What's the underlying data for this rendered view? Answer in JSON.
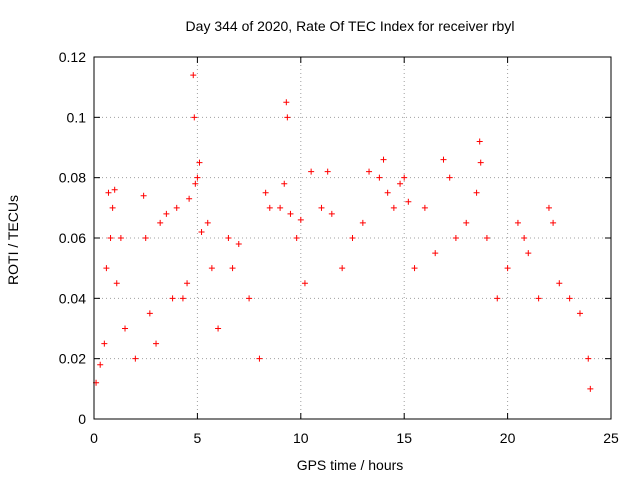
{
  "chart_data": {
    "type": "scatter",
    "title": "Day 344 of 2020, Rate Of TEC Index for receiver rbyl",
    "xlabel": "GPS time / hours",
    "ylabel": "ROTI / TECUs",
    "xlim": [
      0,
      25
    ],
    "ylim": [
      0,
      0.12
    ],
    "x_ticks": [
      0,
      5,
      10,
      15,
      20,
      25
    ],
    "x_tick_labels": [
      "0",
      "5",
      "10",
      "15",
      "20",
      "25"
    ],
    "y_ticks": [
      0,
      0.02,
      0.04,
      0.06,
      0.08,
      0.1,
      0.12
    ],
    "y_tick_labels": [
      "0",
      "0.02",
      "0.04",
      "0.06",
      "0.08",
      "0.1",
      "0.12"
    ],
    "grid": true,
    "marker": "+",
    "color": "#ff0000",
    "series": [
      {
        "name": "ROTI",
        "points": [
          [
            0.1,
            0.012
          ],
          [
            0.3,
            0.018
          ],
          [
            0.5,
            0.025
          ],
          [
            0.6,
            0.05
          ],
          [
            0.7,
            0.075
          ],
          [
            0.8,
            0.06
          ],
          [
            0.9,
            0.07
          ],
          [
            1.0,
            0.076
          ],
          [
            1.1,
            0.045
          ],
          [
            1.3,
            0.06
          ],
          [
            1.5,
            0.03
          ],
          [
            2.0,
            0.02
          ],
          [
            2.4,
            0.074
          ],
          [
            2.5,
            0.06
          ],
          [
            2.7,
            0.035
          ],
          [
            3.0,
            0.025
          ],
          [
            3.2,
            0.065
          ],
          [
            3.5,
            0.068
          ],
          [
            3.8,
            0.04
          ],
          [
            4.0,
            0.07
          ],
          [
            4.3,
            0.04
          ],
          [
            4.5,
            0.045
          ],
          [
            4.6,
            0.073
          ],
          [
            4.8,
            0.114
          ],
          [
            4.85,
            0.1
          ],
          [
            4.9,
            0.078
          ],
          [
            5.0,
            0.08
          ],
          [
            5.1,
            0.085
          ],
          [
            5.2,
            0.062
          ],
          [
            5.5,
            0.065
          ],
          [
            5.7,
            0.05
          ],
          [
            6.0,
            0.03
          ],
          [
            6.5,
            0.06
          ],
          [
            6.7,
            0.05
          ],
          [
            7.0,
            0.058
          ],
          [
            7.5,
            0.04
          ],
          [
            8.0,
            0.02
          ],
          [
            8.3,
            0.075
          ],
          [
            8.5,
            0.07
          ],
          [
            9.0,
            0.07
          ],
          [
            9.2,
            0.078
          ],
          [
            9.3,
            0.105
          ],
          [
            9.35,
            0.1
          ],
          [
            9.5,
            0.068
          ],
          [
            9.8,
            0.06
          ],
          [
            10.0,
            0.066
          ],
          [
            10.2,
            0.045
          ],
          [
            10.5,
            0.082
          ],
          [
            11.0,
            0.07
          ],
          [
            11.3,
            0.082
          ],
          [
            11.5,
            0.068
          ],
          [
            12.0,
            0.05
          ],
          [
            12.5,
            0.06
          ],
          [
            13.0,
            0.065
          ],
          [
            13.3,
            0.082
          ],
          [
            13.8,
            0.08
          ],
          [
            14.0,
            0.086
          ],
          [
            14.2,
            0.075
          ],
          [
            14.5,
            0.07
          ],
          [
            14.8,
            0.078
          ],
          [
            15.0,
            0.08
          ],
          [
            15.2,
            0.072
          ],
          [
            15.5,
            0.05
          ],
          [
            16.0,
            0.07
          ],
          [
            16.5,
            0.055
          ],
          [
            16.9,
            0.086
          ],
          [
            17.2,
            0.08
          ],
          [
            17.5,
            0.06
          ],
          [
            18.0,
            0.065
          ],
          [
            18.5,
            0.075
          ],
          [
            18.65,
            0.092
          ],
          [
            18.7,
            0.085
          ],
          [
            19.0,
            0.06
          ],
          [
            19.5,
            0.04
          ],
          [
            20.0,
            0.05
          ],
          [
            20.5,
            0.065
          ],
          [
            20.8,
            0.06
          ],
          [
            21.0,
            0.055
          ],
          [
            21.5,
            0.04
          ],
          [
            22.0,
            0.07
          ],
          [
            22.2,
            0.065
          ],
          [
            22.5,
            0.045
          ],
          [
            23.0,
            0.04
          ],
          [
            23.5,
            0.035
          ],
          [
            23.9,
            0.02
          ],
          [
            24.0,
            0.01
          ]
        ]
      }
    ]
  }
}
